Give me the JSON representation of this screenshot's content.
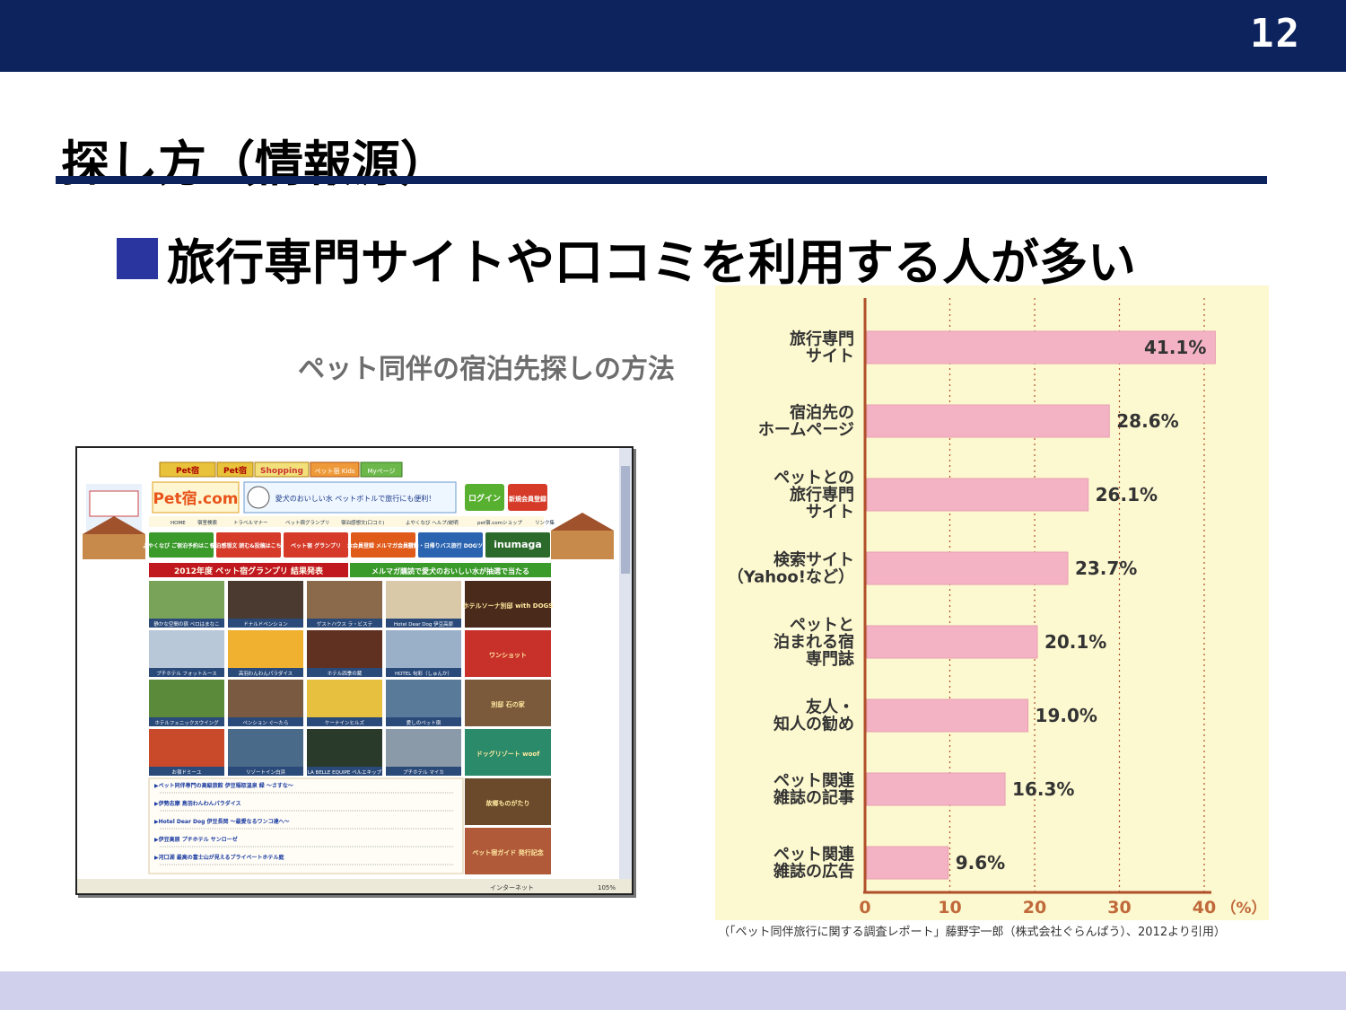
{
  "page_number": "12",
  "title": "探し方（情報源）",
  "subtitle": "旅行専門サイトや口コミを利用する人が多い",
  "image_caption": "ペット同伴の宿泊先探しの方法",
  "source_note": "（「ペット同伴旅行に関する調査レポート」藤野宇一郎（株式会社ぐらんぱう）、2012より引用）",
  "colors": {
    "header": "#0d235e",
    "bullet": "#2a35a0",
    "bar": "#f4b3c4",
    "chart_bg": "#fcf8cf",
    "footer": "#d0d0ec"
  },
  "website_screenshot": {
    "logo": "Pet宿.com",
    "top_tabs": [
      "Pet宿",
      "Pet宿",
      "Shopping",
      "ペット宿 Kids",
      "Myページ"
    ],
    "login_button": "ログイン",
    "register_button": "新規会員登録",
    "banner_text": "愛犬のおいしい水 ペットボトルで旅行にも便利！",
    "nav_links": [
      "HOME",
      "宿室検索",
      "トラベルマナー",
      "ペット宿グランプリ",
      "宿泊感想文(口コミ)",
      "よやくなび ヘルプ/説明",
      "pet宿.comショップ",
      "リンク集"
    ],
    "feature_buttons": [
      "よやくなび ご宿泊予約はこちら",
      "宿泊感想文 読む&投稿はこちら",
      "ペット宿 グランプリ",
      "本会員登録 メルマガ会員登録",
      "宿泊・日帰りバス旅行 DOGツアー",
      "inumaga"
    ],
    "grandprix_banner": "2012年度 ペット宿グランプリ 結果発表",
    "mailmag_banner": "メルマガ購読で愛犬のおいしい水が抽選で当たる",
    "hotel_labels": [
      "静かな空間の宿 ペロはまなこ",
      "ドナルドペンション",
      "ゲストハウス ラ・ビステ",
      "Hotel Dear Dog 伊豆高原",
      "プチホテル フォットルース",
      "高羽わんわんパラダイス",
      "ホテル四季の蔵",
      "HOTEL 旬彩（しゅんか）",
      "ホテルフェニックスウイング",
      "ペンション ぐ～たら",
      "ケーナインヒルズ",
      "愛しのペット宿",
      "お宿ドミーユ",
      "リゾートイン白浜",
      "LA BELLE EQUIPE ペルエキップ",
      "プチホテル マイカ"
    ],
    "side_banners": [
      "ホテルソーナ別邸 with DOGS",
      "ワンショット",
      "別邸 石の家",
      "ドッグリゾート woof",
      "故郷ものがたり",
      "ペット宿ガイド 発行記念"
    ],
    "news_items": [
      "ペット同伴専門の高級旅館 伊豆稲取温泉 緑 ～さすな～",
      "伊勢志摩 鳥羽わんわんパラダイス",
      "Hotel Dear Dog 伊豆長岡 ～最愛なるワンコ達へ～",
      "伊豆高原 プチホテル サンローゼ",
      "河口湖 最高の富士山が見えるプライベートホテル庭"
    ],
    "status_bar": "インターネット",
    "zoom": "105%"
  },
  "chart_data": {
    "type": "bar",
    "orientation": "horizontal",
    "categories": [
      [
        "旅行専門",
        "サイト"
      ],
      [
        "宿泊先の",
        "ホームページ"
      ],
      [
        "ペットとの",
        "旅行専門",
        "サイト"
      ],
      [
        "検索サイト",
        "（Yahoo!など）"
      ],
      [
        "ペットと",
        "泊まれる宿",
        "専門誌"
      ],
      [
        "友人・",
        "知人の勧め"
      ],
      [
        "ペット関連",
        "雑誌の記事"
      ],
      [
        "ペット関連",
        "雑誌の広告"
      ]
    ],
    "values": [
      41.1,
      28.6,
      26.1,
      23.7,
      20.1,
      19.0,
      16.3,
      9.6
    ],
    "value_labels": [
      "41.1%",
      "28.6%",
      "26.1%",
      "23.7%",
      "20.1%",
      "19.0%",
      "16.3%",
      "9.6%"
    ],
    "x_ticks": [
      "0",
      "10",
      "20",
      "30",
      "40"
    ],
    "x_unit": "（%）",
    "xlim": [
      0,
      42
    ],
    "grid": "dotted vertical"
  }
}
